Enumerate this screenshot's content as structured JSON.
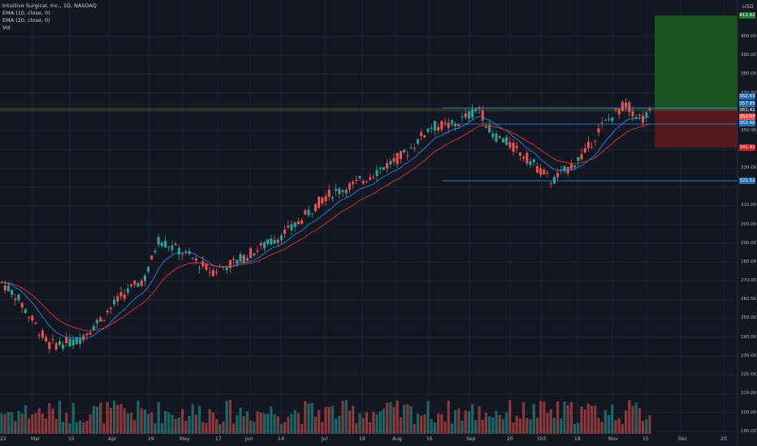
{
  "legend": {
    "symbol_line": "Intuitive Surgical, Inc., 1D, NASDAQ",
    "ema10": "EMA (10, close, 0)",
    "ema20": "EMA (20, close, 0)",
    "vol": "Vol"
  },
  "axis": {
    "currency": "USD",
    "y_ticks": [
      "400.00",
      "390.00",
      "380.00",
      "370.00",
      "360.00",
      "350.00",
      "340.00",
      "330.00",
      "320.00",
      "310.00",
      "300.00",
      "290.00",
      "280.00",
      "270.00",
      "260.00",
      "250.00",
      "240.00",
      "230.00",
      "220.00",
      "210.00",
      "200.00",
      "190.00"
    ],
    "x_ticks": [
      "22",
      "Mar",
      "15",
      "Apr",
      "19",
      "May",
      "17",
      "Jun",
      "14",
      "Jul",
      "19",
      "Aug",
      "16",
      "Sep",
      "20",
      "Oct",
      "18",
      "Nov",
      "15",
      "Dec",
      "20"
    ]
  },
  "price_labels": {
    "target": "411.42",
    "current": "361.42",
    "last": "353.07",
    "stop": "341.42",
    "support": "322.52",
    "resistance_a": "362.53",
    "resistance_b": "357.85",
    "level_c": "353.40"
  },
  "colors": {
    "bg": "#131722",
    "up": "#26a69a",
    "down": "#ef5350",
    "ema10": "#2196f3",
    "ema20": "#f23645",
    "hline": "#2196f3",
    "target_zone": "#1b5e20",
    "stop_zone": "#5c1a1f"
  },
  "chart_data": {
    "type": "candlestick",
    "ylim": [
      188,
      410
    ],
    "annotations": [
      "long position: entry 361.42, target 411.42, stop 341.42"
    ],
    "horizontal_lines": [
      362.5,
      353.4,
      322.5
    ]
  }
}
